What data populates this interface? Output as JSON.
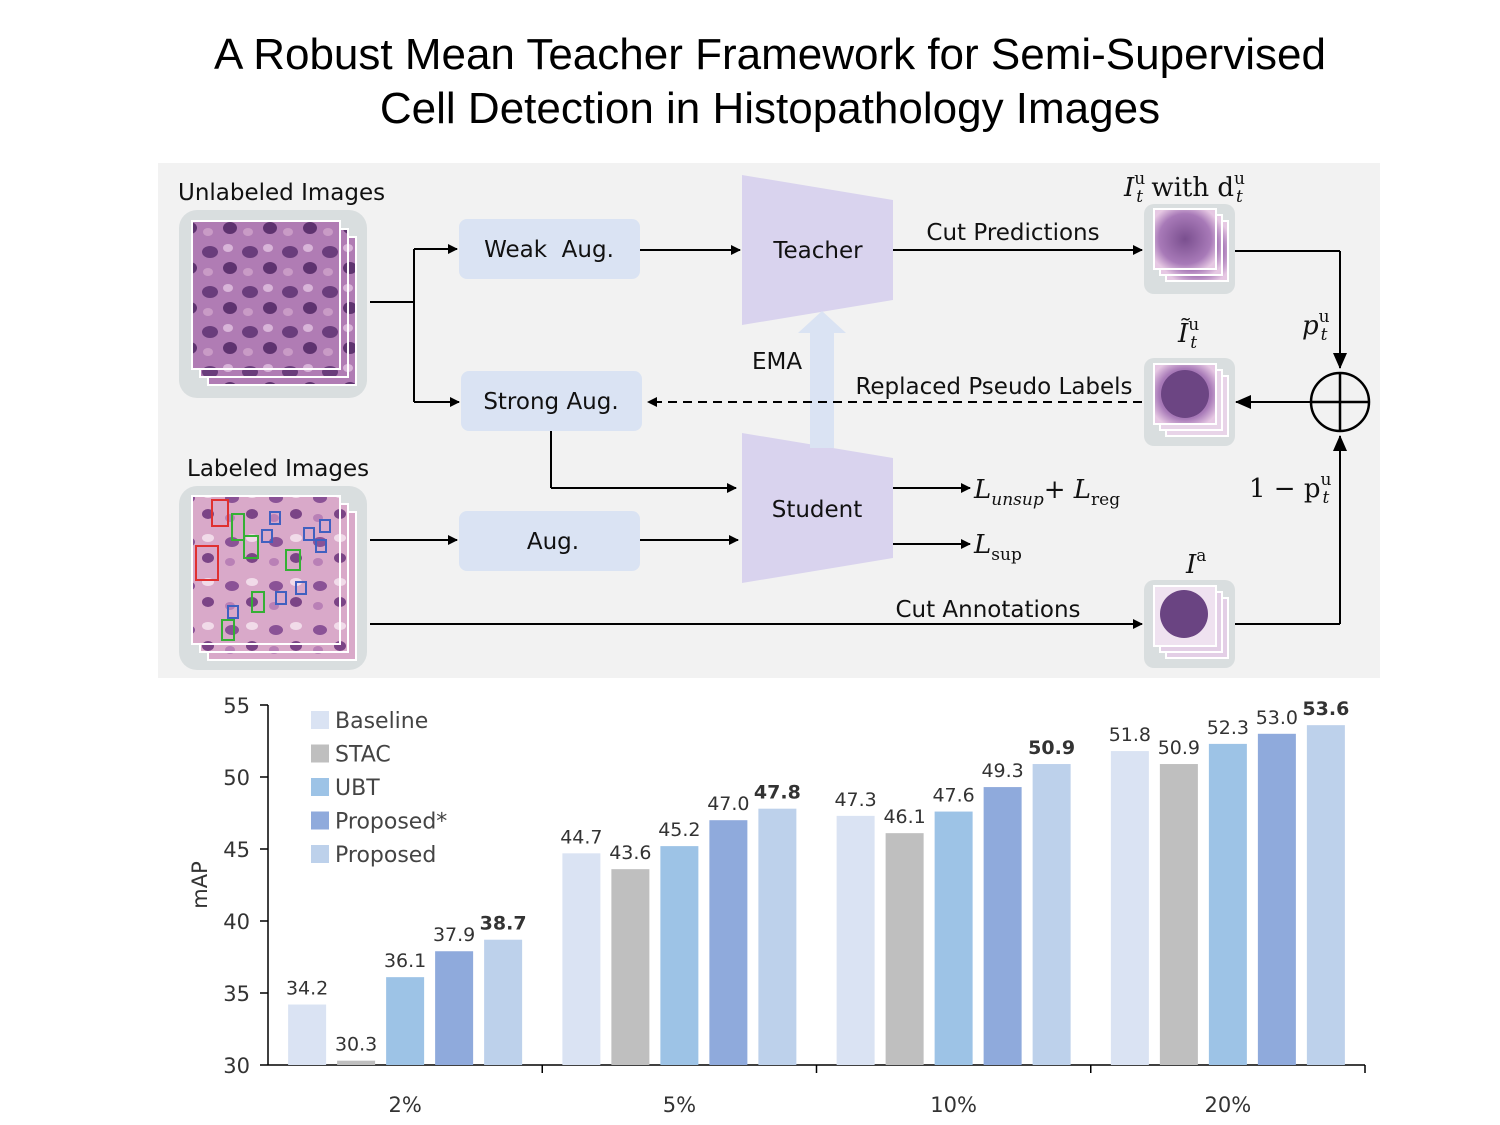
{
  "title": {
    "line1": "A Robust Mean Teacher Framework for Semi-Supervised",
    "line2": "Cell Detection in Histopathology Images"
  },
  "diagram": {
    "unlabeled_images": "Unlabeled Images",
    "labeled_images": "Labeled Images",
    "weak_aug": "Weak  Aug.",
    "strong_aug": "Strong Aug.",
    "aug": "Aug.",
    "teacher": "Teacher",
    "student": "Student",
    "ema": "EMA",
    "cut_predictions": "Cut Predictions",
    "replaced_pseudo_labels": "Replaced Pseudo Labels",
    "cut_annotations": "Cut Annotations",
    "loss_unsup": "L",
    "loss_unsup_sub": "unsup",
    "loss_plus": "+ ",
    "loss_reg": "L",
    "loss_reg_sub": "reg",
    "loss_sup": "L",
    "loss_sup_sub": "sup",
    "pred_image_label_I": "I",
    "pred_image_label_with": " with d",
    "sup_u": "u",
    "sub_t": "t",
    "replaced_image_label": "Ĩ",
    "prob_label": "p",
    "one_minus": "1 − p",
    "annot_label": "I",
    "annot_sup": "a"
  },
  "chart_data": {
    "type": "bar",
    "ylabel": "mAP",
    "ylim": [
      30,
      55
    ],
    "yticks": [
      "30",
      "35",
      "40",
      "45",
      "50",
      "55"
    ],
    "categories": [
      "2%",
      "5%",
      "10%",
      "20%"
    ],
    "legend_position": "top-left",
    "series": [
      {
        "name": "Baseline",
        "color": "#dae3f3",
        "values": [
          34.2,
          44.7,
          47.3,
          51.8
        ],
        "labels": [
          "34.2",
          "44.7",
          "47.3",
          "51.8"
        ],
        "bold": false
      },
      {
        "name": "STAC",
        "color": "#bfbfbf",
        "values": [
          30.3,
          43.6,
          46.1,
          50.9
        ],
        "labels": [
          "30.3",
          "43.6",
          "46.1",
          "50.9"
        ],
        "bold": false
      },
      {
        "name": "UBT",
        "color": "#9dc3e6",
        "values": [
          36.1,
          45.2,
          47.6,
          52.3
        ],
        "labels": [
          "36.1",
          "45.2",
          "47.6",
          "52.3"
        ],
        "bold": false
      },
      {
        "name": "Proposed*",
        "color": "#8faadc",
        "values": [
          37.9,
          47.0,
          49.3,
          53.0
        ],
        "labels": [
          "37.9",
          "47.0",
          "49.3",
          "53.0"
        ],
        "bold": false
      },
      {
        "name": "Proposed",
        "color": "#bdd1eb",
        "values": [
          38.7,
          47.8,
          50.9,
          53.6
        ],
        "labels": [
          "38.7",
          "47.8",
          "50.9",
          "53.6"
        ],
        "bold": true
      }
    ]
  }
}
